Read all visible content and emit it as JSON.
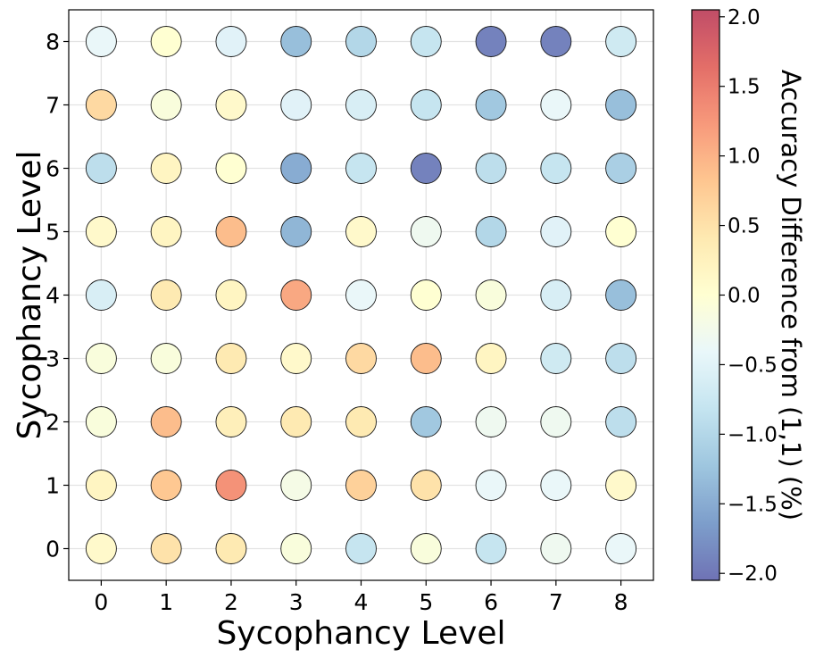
{
  "chart_data": {
    "type": "bubble-grid",
    "title": "",
    "xlabel": "Sycophancy Level",
    "ylabel": "Sycophancy Level",
    "x_ticks": [
      "0",
      "1",
      "2",
      "3",
      "4",
      "5",
      "6",
      "7",
      "8"
    ],
    "y_ticks": [
      "0",
      "1",
      "2",
      "3",
      "4",
      "5",
      "6",
      "7",
      "8"
    ],
    "xlim": [
      -0.5,
      8.5
    ],
    "ylim": [
      -0.5,
      8.5
    ],
    "grid": true,
    "colorbar": {
      "label": "Accuracy Difference from (1,1) (%)",
      "range": [
        -2.05,
        2.05
      ],
      "colormap": "RdYlBu_r",
      "alpha": 0.7,
      "ticks": [
        {
          "value": 2.0,
          "label": "2.0"
        },
        {
          "value": 1.5,
          "label": "1.5"
        },
        {
          "value": 1.0,
          "label": "1.0"
        },
        {
          "value": 0.5,
          "label": "0.5"
        },
        {
          "value": 0.0,
          "label": "0.0"
        },
        {
          "value": -0.5,
          "label": "−0.5"
        },
        {
          "value": -1.0,
          "label": "−1.0"
        },
        {
          "value": -1.5,
          "label": "−1.5"
        },
        {
          "value": -2.0,
          "label": "−2.0"
        }
      ]
    },
    "rows_y": [
      0,
      1,
      2,
      3,
      4,
      5,
      6,
      7,
      8
    ],
    "values": [
      [
        0.1,
        0.5,
        0.4,
        -0.1,
        -0.8,
        -0.1,
        -0.8,
        -0.3,
        -0.4
      ],
      [
        0.2,
        0.8,
        1.3,
        -0.2,
        0.7,
        0.5,
        -0.4,
        -0.4,
        0.1
      ],
      [
        -0.1,
        0.9,
        0.3,
        0.4,
        0.4,
        -1.2,
        -0.3,
        -0.3,
        -0.9
      ],
      [
        -0.1,
        -0.1,
        0.4,
        0.1,
        0.6,
        0.9,
        0.2,
        -0.7,
        -0.9
      ],
      [
        -0.6,
        0.4,
        0.2,
        1.1,
        -0.4,
        0.0,
        -0.1,
        -0.6,
        -1.3
      ],
      [
        0.1,
        0.2,
        0.9,
        -1.4,
        0.1,
        -0.3,
        -1.0,
        -0.5,
        0.0
      ],
      [
        -0.9,
        0.2,
        0.0,
        -1.5,
        -0.8,
        -1.9,
        -0.9,
        -0.8,
        -1.1
      ],
      [
        0.6,
        -0.1,
        0.1,
        -0.5,
        -0.6,
        -0.8,
        -1.2,
        -0.4,
        -1.3
      ],
      [
        -0.4,
        0.0,
        -0.5,
        -1.3,
        -1.0,
        -0.8,
        -1.9,
        -1.9,
        -0.7
      ]
    ]
  }
}
